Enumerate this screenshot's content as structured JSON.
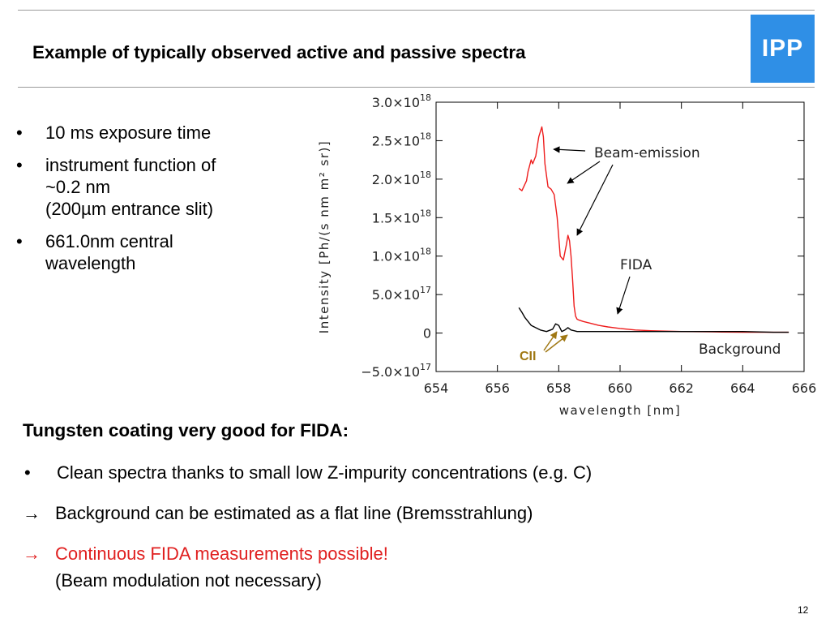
{
  "slide": {
    "title": "Example of typically observed active and passive spectra",
    "logo": "IPP",
    "page_number": "12"
  },
  "left_bullets": [
    {
      "marker": "•",
      "lines": [
        "10 ms exposure time"
      ]
    },
    {
      "marker": "•",
      "lines": [
        "instrument function of",
        "~0.2 nm",
        "(200µm entrance slit)"
      ]
    },
    {
      "marker": "•",
      "lines": [
        "661.0nm central",
        "wavelength"
      ]
    }
  ],
  "bottom": {
    "heading": "Tungsten coating very good for FIDA:",
    "bullet_marker": "•",
    "bullet_text": "Clean spectra thanks to small low Z-impurity concentrations (e.g. C)",
    "arrow_marker": "→",
    "arrow1_text": "Background can be estimated as a flat line (Bremsstrahlung)",
    "arrow2_text": "Continuous FIDA measurements possible!",
    "arrow2_sub": "(Beam modulation not necessary)"
  },
  "colors": {
    "accent_red": "#e02020",
    "active_series": "#ee1c1c",
    "background_series": "#000000",
    "cii_annotation": "#a07814",
    "logo_blue": "#2f8fe6"
  },
  "chart_data": {
    "type": "line",
    "xlabel": "wavelength [nm]",
    "ylabel": "Intensity [Ph/(s nm m² sr)]",
    "xlim": [
      654,
      666
    ],
    "ylim": [
      -5e+17,
      3e+18
    ],
    "xticks": [
      654,
      656,
      658,
      660,
      662,
      664,
      666
    ],
    "xtick_labels": [
      "654",
      "656",
      "658",
      "660",
      "662",
      "664",
      "666"
    ],
    "yticks": [
      3e+18,
      2.5e+18,
      2e+18,
      1.5e+18,
      1e+18,
      5e+17,
      0,
      -5e+17
    ],
    "ytick_labels": [
      {
        "mant": "3.0×10",
        "exp": "18"
      },
      {
        "mant": "2.5×10",
        "exp": "18"
      },
      {
        "mant": "2.0×10",
        "exp": "18"
      },
      {
        "mant": "1.5×10",
        "exp": "18"
      },
      {
        "mant": "1.0×10",
        "exp": "18"
      },
      {
        "mant": "5.0×10",
        "exp": "17"
      },
      {
        "mant": "0",
        "exp": ""
      },
      {
        "mant": "−5.0×10",
        "exp": "17"
      }
    ],
    "grid": false,
    "series": [
      {
        "color": "#ee1c1c",
        "x": [
          656.7,
          656.8,
          656.95,
          657.0,
          657.1,
          657.15,
          657.25,
          657.35,
          657.45,
          657.5,
          657.55,
          657.65,
          657.75,
          657.85,
          657.95,
          658.05,
          658.15,
          658.2,
          658.25,
          658.3,
          658.35,
          658.4,
          658.45,
          658.5,
          658.55,
          658.6,
          658.65,
          658.8,
          659.0,
          659.3,
          659.6,
          660.0,
          660.5,
          661.0,
          662.0,
          663.0,
          664.0,
          665.0,
          665.5
        ],
        "y": [
          1.88e+18,
          1.85e+18,
          1.98e+18,
          2.1e+18,
          2.25e+18,
          2.2e+18,
          2.3e+18,
          2.55e+18,
          2.68e+18,
          2.55e+18,
          2.2e+18,
          1.9e+18,
          1.87e+18,
          1.8e+18,
          1.5e+18,
          1e+18,
          9.5e+17,
          1.05e+18,
          1.15e+18,
          1.27e+18,
          1.2e+18,
          1e+18,
          7e+17,
          3.5e+17,
          2.2e+17,
          1.8e+17,
          1.7e+17,
          1.5e+17,
          1.3e+17,
          1e+17,
          8e+16,
          6e+16,
          4e+16,
          3e+16,
          2e+16,
          1.5e+16,
          1e+16,
          1e+16,
          1e+16
        ]
      },
      {
        "color": "#000000",
        "x": [
          656.7,
          656.8,
          656.9,
          657.0,
          657.1,
          657.2,
          657.4,
          657.6,
          657.8,
          657.9,
          658.0,
          658.1,
          658.2,
          658.3,
          658.4,
          658.5,
          658.6,
          659.0,
          659.5,
          660.0,
          661.0,
          662.0,
          663.0,
          664.0,
          665.0,
          665.5
        ],
        "y": [
          3.3e+17,
          2.7e+17,
          2e+17,
          1.5e+17,
          1e+17,
          8e+16,
          4e+16,
          2e+16,
          5e+16,
          1.2e+17,
          1e+17,
          2e+16,
          4e+16,
          7e+16,
          4e+16,
          3e+16,
          2e+16,
          2e+16,
          2e+16,
          2e+16,
          2e+16,
          2e+16,
          2e+16,
          2e+16,
          1e+16,
          1e+16
        ]
      }
    ],
    "annotations": [
      {
        "text": "Beam-emission"
      },
      {
        "text": "FIDA"
      },
      {
        "text": "Background"
      },
      {
        "text": "CII"
      }
    ]
  }
}
